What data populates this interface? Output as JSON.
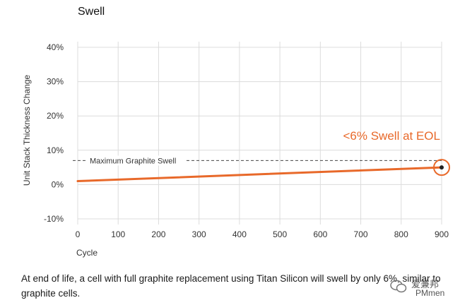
{
  "chart_data": {
    "type": "line",
    "title": "Swell",
    "xlabel": "Cycle",
    "ylabel": "Unit Stack Thickness Change",
    "x_ticks": [
      0,
      100,
      200,
      300,
      400,
      500,
      600,
      700,
      800,
      900
    ],
    "y_ticks": [
      -10,
      0,
      10,
      20,
      30,
      40
    ],
    "y_tick_labels": [
      "-10%",
      "0%",
      "10%",
      "20%",
      "30%",
      "40%"
    ],
    "xlim": [
      0,
      900
    ],
    "ylim": [
      -10,
      40
    ],
    "grid": true,
    "series": [
      {
        "x": [
          0,
          900
        ],
        "y": [
          1,
          5
        ],
        "color": "#e8692a"
      }
    ],
    "reference_line": {
      "y": 7,
      "label": "Maximum Graphite Swell"
    },
    "annotation": {
      "text": "<6% Swell at EOL",
      "x": 900,
      "y": 5,
      "color": "#e8692a"
    }
  },
  "caption": "At end of life, a cell with full graphite replacement using Titan Silicon will swell by only 6%, similar to graphite cells.",
  "watermark": {
    "line1": "爱兼邦",
    "line2": "PMmen"
  }
}
